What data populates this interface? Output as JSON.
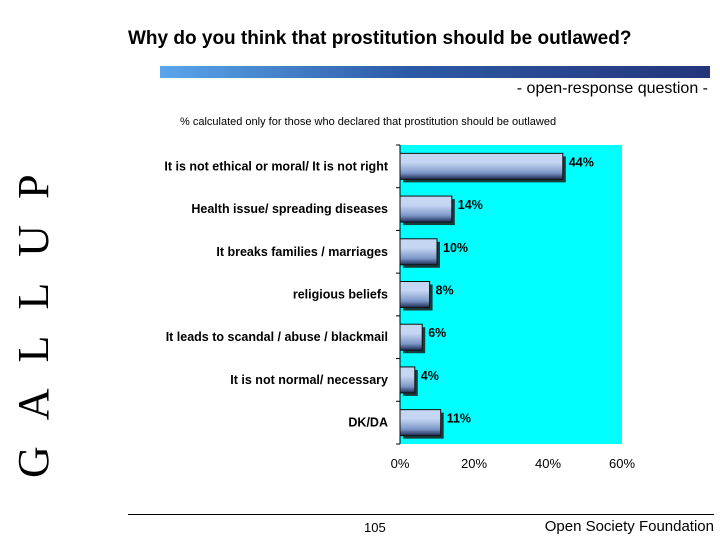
{
  "branding": {
    "logo_text": "GALLUP",
    "icon": "gallup-vertical-logo"
  },
  "header": {
    "title": "Why do you think that prostitution should be outlawed?",
    "subtitle": "- open-response question -",
    "note": "% calculated only for those who declared that prostitution should be outlawed"
  },
  "colors": {
    "plot_background": "#00ffff",
    "bar_light": "#c5d6f2",
    "bar_mid": "#7c98c8",
    "bar_dark": "#1c2a52",
    "accent_rule": "#2d5aa6"
  },
  "chart_data": {
    "type": "bar",
    "orientation": "horizontal",
    "categories": [
      "It is not ethical or moral/ It is not right",
      "Health issue/ spreading diseases",
      "It breaks families / marriages",
      "religious beliefs",
      "It leads to scandal / abuse / blackmail",
      "It is not normal/ necessary",
      "DK/DA"
    ],
    "values": [
      44,
      14,
      10,
      8,
      6,
      4,
      11
    ],
    "data_labels": [
      "44%",
      "14%",
      "10%",
      "8%",
      "6%",
      "4%",
      "11%"
    ],
    "xlim": [
      0,
      60
    ],
    "xticks": [
      0,
      20,
      40,
      60
    ],
    "xtick_labels": [
      "0%",
      "20%",
      "40%",
      "60%"
    ],
    "grid": false,
    "legend": "none"
  },
  "footer": {
    "page_number": "105",
    "organization": "Open Society Foundation"
  }
}
